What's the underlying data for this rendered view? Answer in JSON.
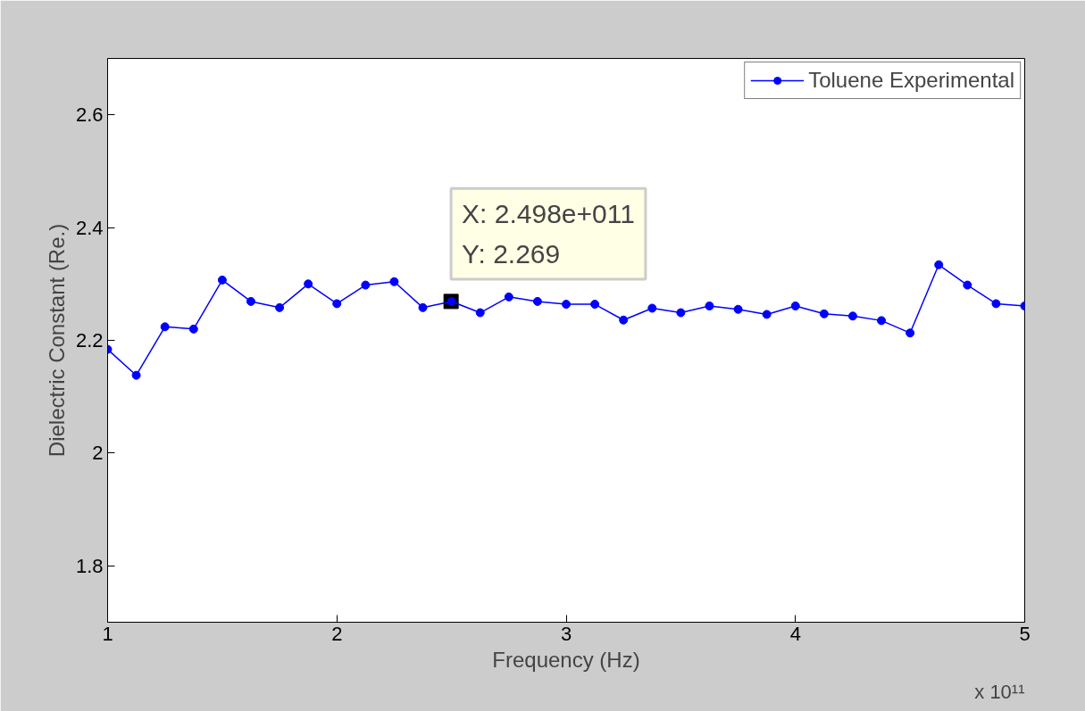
{
  "chart_data": {
    "type": "line",
    "xlabel": "Frequency (Hz)",
    "ylabel": "Dielectric Constant (Re.)",
    "x": [
      1,
      1.125,
      1.25,
      1.375,
      1.5,
      1.625,
      1.75,
      1.875,
      2,
      2.125,
      2.25,
      2.375,
      2.5,
      2.625,
      2.75,
      2.875,
      3,
      3.125,
      3.25,
      3.375,
      3.5,
      3.625,
      3.75,
      3.875,
      4,
      4.125,
      4.25,
      4.375,
      4.5,
      4.625,
      4.75,
      4.875,
      5
    ],
    "series": [
      {
        "name": "Toluene Experimental",
        "color": "#0000ff",
        "values": [
          2.184,
          2.138,
          2.224,
          2.22,
          2.307,
          2.269,
          2.258,
          2.3,
          2.265,
          2.298,
          2.304,
          2.258,
          2.269,
          2.249,
          2.277,
          2.269,
          2.264,
          2.264,
          2.236,
          2.257,
          2.249,
          2.261,
          2.255,
          2.246,
          2.261,
          2.247,
          2.243,
          2.235,
          2.213,
          2.334,
          2.298,
          2.265,
          2.261
        ]
      }
    ],
    "xlim": [
      1,
      5
    ],
    "xticks": [
      1,
      2,
      3,
      4,
      5
    ],
    "ylim": [
      1.7,
      2.7
    ],
    "yticks": [
      1.8,
      2,
      2.2,
      2.4,
      2.6
    ],
    "marker": "circle",
    "line_style": "solid",
    "grid": false,
    "legend": "top right",
    "annotations": [
      {
        "text": "X: 2.498e+011\nY: 2.269",
        "x": 2.498,
        "y": 2.269
      },
      "x 10¹¹"
    ]
  }
}
